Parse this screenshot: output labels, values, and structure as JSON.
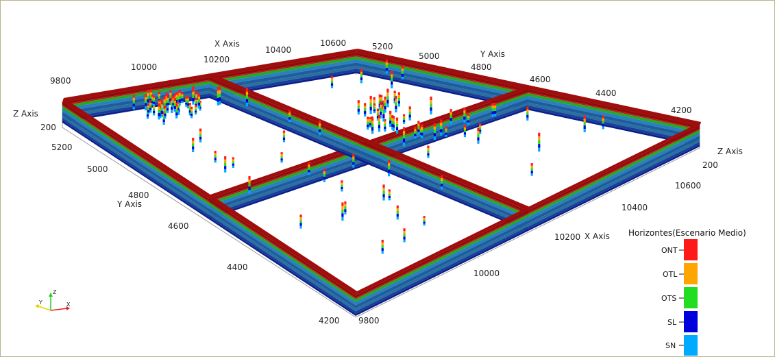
{
  "axes": {
    "x_top": {
      "label": "X Axis",
      "ticks": [
        "9800",
        "10000",
        "10200",
        "10400",
        "10600"
      ]
    },
    "y_top": {
      "label": "Y Axis",
      "ticks": [
        "5200",
        "5000",
        "4800",
        "4600",
        "4400",
        "4200"
      ]
    },
    "z_left": {
      "label": "Z Axis",
      "ticks": [
        "200"
      ]
    },
    "z_right": {
      "label": "Z Axis",
      "ticks": [
        "200"
      ]
    },
    "y_left": {
      "label": "Y Axis",
      "ticks": [
        "5200",
        "5000",
        "4800",
        "4600",
        "4400",
        "4200"
      ]
    },
    "x_bottom": {
      "label": "X Axis",
      "ticks": [
        "9800",
        "10000",
        "10200",
        "10400",
        "10600"
      ]
    }
  },
  "legend": {
    "title": "Horizontes(Escenario Medio)",
    "items": [
      {
        "label": "ONT",
        "color": "#ff1a1a"
      },
      {
        "label": "OTL",
        "color": "#ffa500"
      },
      {
        "label": "OTS",
        "color": "#22dd22"
      },
      {
        "label": "SL",
        "color": "#0000dd"
      },
      {
        "label": "SN",
        "color": "#00aaff"
      }
    ]
  },
  "orientation": {
    "z": "Z",
    "y": "Y",
    "x": "X"
  },
  "colors": {
    "top_crust": "#8e0b0b",
    "wall_mid": "#2a6fa0",
    "wall_base": "#0c1f8a"
  }
}
